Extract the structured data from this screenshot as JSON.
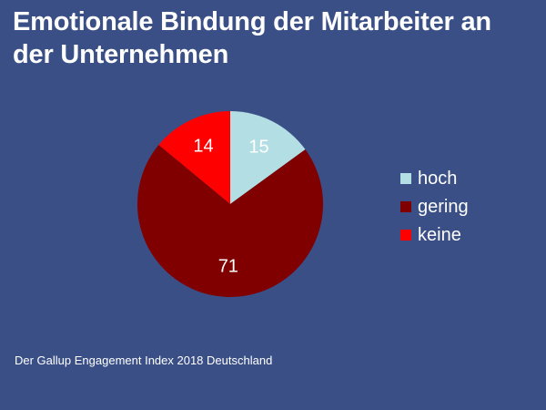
{
  "page": {
    "title": "Emotionale Bindung der Mitarbeiter an der Unternehmen",
    "source": "Der Gallup Engagement Index 2018 Deutschland",
    "background_color": "#3a4f86"
  },
  "chart_data": {
    "type": "pie",
    "title": "Emotionale Bindung der Mitarbeiter an der Unternehmen",
    "legend_position": "right",
    "slices": [
      {
        "label": "hoch",
        "value": 15,
        "color": "#b3dfe4"
      },
      {
        "label": "gering",
        "value": 71,
        "color": "#800000"
      },
      {
        "label": "keine",
        "value": 14,
        "color": "#ff0000"
      }
    ]
  }
}
